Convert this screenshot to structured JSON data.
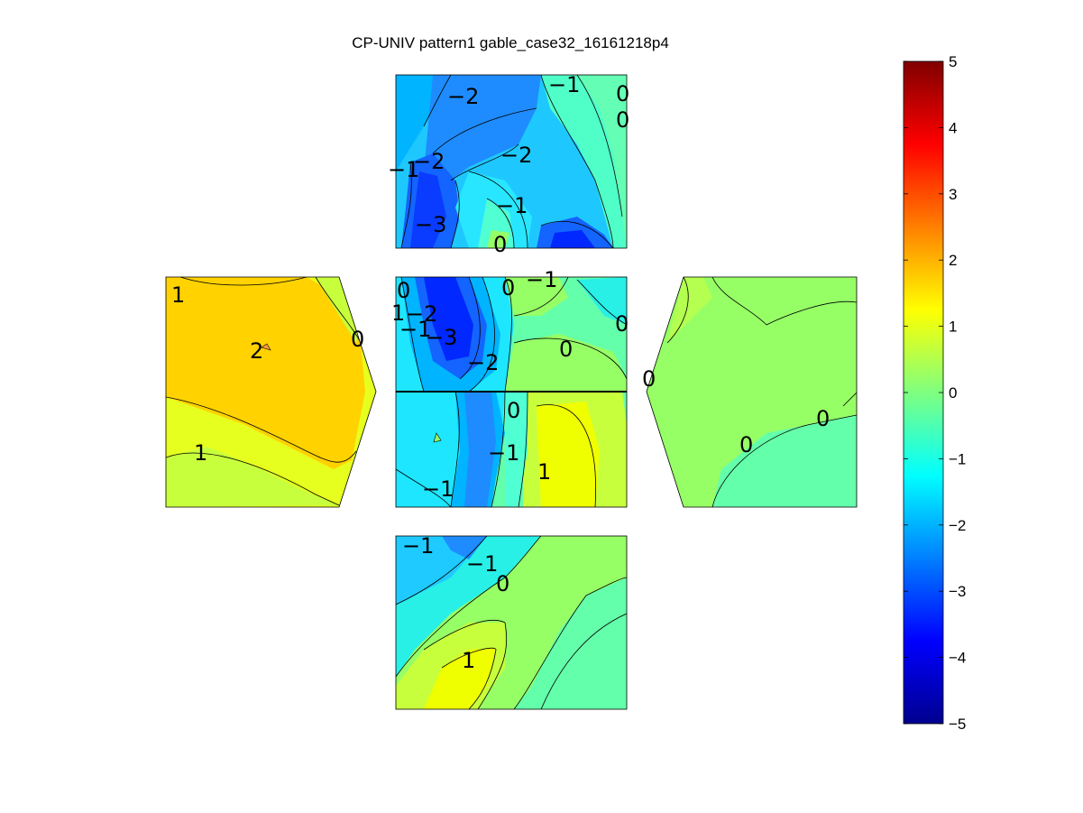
{
  "title": "CP-UNIV pattern1 gable_case32_16161218p4",
  "chart_data": {
    "type": "contour",
    "title": "CP-UNIV pattern1 gable_case32_16161218p4",
    "colormap": "jet",
    "clim": [
      -5,
      5
    ],
    "colorbar_ticks": [
      "5",
      "4",
      "3",
      "2",
      "1",
      "0",
      "−1",
      "−2",
      "−3",
      "−4",
      "−5"
    ],
    "panels": [
      {
        "name": "top",
        "contour_labels": [
          "−2",
          "−1",
          "0",
          "0",
          "−2",
          "−1",
          "−2",
          "−1",
          "−3",
          "0"
        ]
      },
      {
        "name": "left-wall",
        "contour_labels": [
          "1",
          "2",
          "0",
          "1"
        ]
      },
      {
        "name": "roof-upper",
        "contour_labels": [
          "0",
          "0",
          "−1",
          "1",
          "−2",
          "−1",
          "−3",
          "0",
          "0",
          "−2"
        ]
      },
      {
        "name": "roof-lower",
        "contour_labels": [
          "0",
          "−1",
          "1",
          "−1"
        ]
      },
      {
        "name": "right-wall",
        "contour_labels": [
          "0",
          "0",
          "0"
        ]
      },
      {
        "name": "bottom",
        "contour_labels": [
          "−1",
          "−1",
          "0",
          "1"
        ]
      }
    ]
  }
}
